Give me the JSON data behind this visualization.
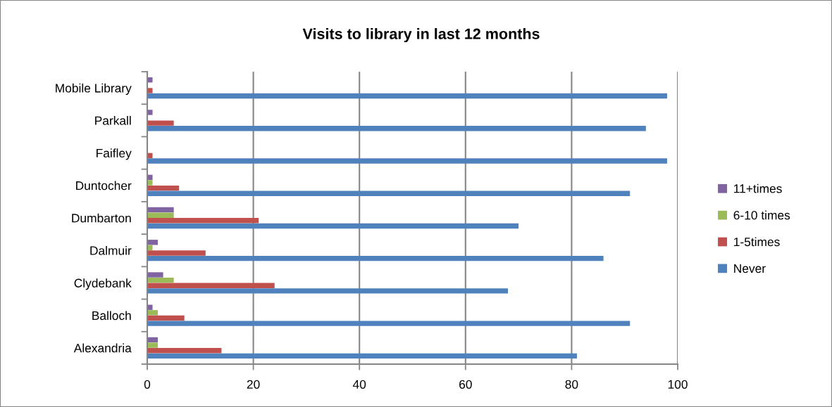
{
  "chart_data": {
    "type": "bar",
    "orientation": "horizontal",
    "title": "Visits to library in last 12 months",
    "categories": [
      "Mobile Library",
      "Parkall",
      "Faifley",
      "Duntocher",
      "Dumbarton",
      "Dalmuir",
      "Clydebank",
      "Balloch",
      "Alexandria"
    ],
    "series": [
      {
        "name": "11+times",
        "color": "#8064a2",
        "values": [
          1,
          1,
          0,
          1,
          5,
          2,
          3,
          1,
          2
        ]
      },
      {
        "name": "6-10 times",
        "color": "#9bbb59",
        "values": [
          0,
          0,
          0,
          1,
          5,
          1,
          5,
          2,
          2
        ]
      },
      {
        "name": "1-5times",
        "color": "#c0504d",
        "values": [
          1,
          5,
          1,
          6,
          21,
          11,
          24,
          7,
          14
        ]
      },
      {
        "name": "Never",
        "color": "#4f81bd",
        "values": [
          98,
          94,
          98,
          91,
          70,
          86,
          68,
          91,
          81
        ]
      }
    ],
    "xlim": [
      0,
      100
    ],
    "xticks": [
      0,
      20,
      40,
      60,
      80,
      100
    ],
    "grid": "x",
    "legend": "right"
  }
}
